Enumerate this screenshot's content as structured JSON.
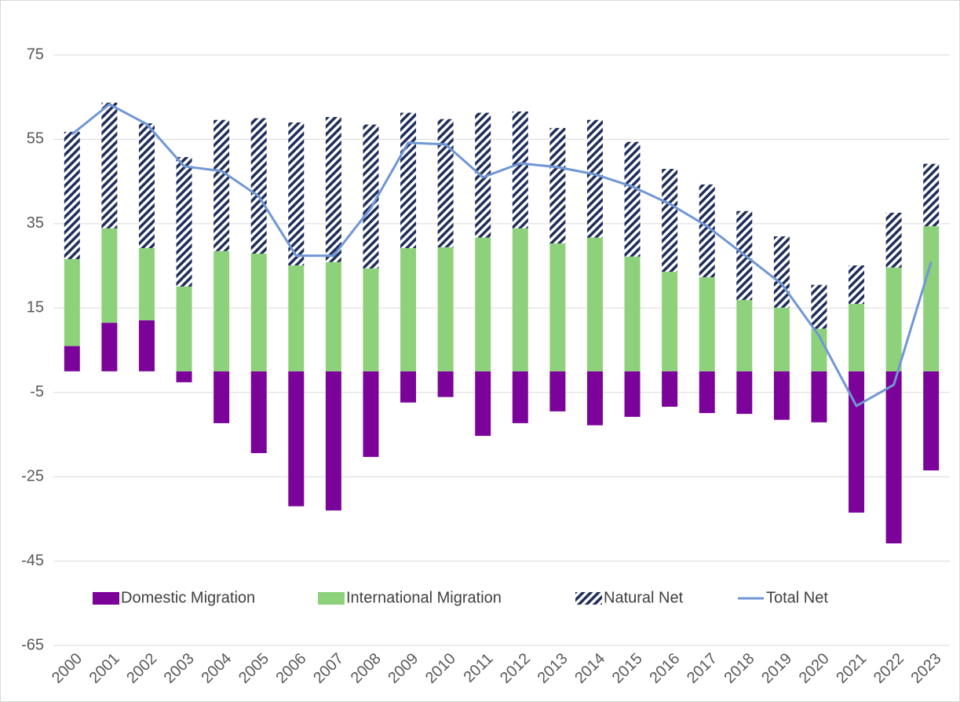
{
  "chart_data": {
    "type": "stacked-bar-line",
    "categories": [
      "2000",
      "2001",
      "2002",
      "2003",
      "2004",
      "2005",
      "2006",
      "2007",
      "2008",
      "2009",
      "2010",
      "2011",
      "2012",
      "2013",
      "2014",
      "2015",
      "2016",
      "2017",
      "2018",
      "2019",
      "2020",
      "2021",
      "2022",
      "2023"
    ],
    "series": [
      {
        "name": "Domestic Migration",
        "type": "bar",
        "color": "#7b0399",
        "values": [
          6.0,
          11.5,
          12.1,
          -2.6,
          -12.3,
          -19.4,
          -32.0,
          -33.0,
          -20.3,
          -7.4,
          -6.1,
          -15.3,
          -12.3,
          -9.5,
          -12.8,
          -10.8,
          -8.4,
          -9.9,
          -10.1,
          -11.5,
          -12.1,
          -33.5,
          -40.8,
          -23.5
        ]
      },
      {
        "name": "International Migration",
        "type": "bar",
        "color": "#8ed17b",
        "values": [
          20.6,
          22.4,
          17.1,
          20.1,
          28.5,
          27.9,
          25.1,
          25.9,
          24.4,
          29.2,
          29.4,
          31.7,
          33.9,
          30.3,
          31.7,
          27.2,
          23.6,
          22.3,
          16.9,
          15.1,
          10.1,
          16.0,
          24.6,
          34.4
        ]
      },
      {
        "name": "Natural Net",
        "type": "bar",
        "color": "#1f2d5a",
        "hatch": true,
        "values": [
          30.2,
          29.8,
          29.6,
          30.7,
          31.1,
          32.1,
          33.9,
          34.4,
          34.1,
          32.1,
          30.4,
          29.6,
          27.7,
          27.4,
          27.9,
          27.2,
          24.4,
          22.0,
          21.1,
          16.9,
          10.4,
          9.1,
          13.0,
          14.8
        ]
      },
      {
        "name": "Total Net",
        "type": "line",
        "color": "#7097d4",
        "values": [
          56.2,
          63.3,
          58.6,
          48.6,
          47.5,
          41.5,
          27.4,
          27.4,
          38.7,
          54.2,
          53.8,
          46.0,
          49.3,
          48.4,
          46.7,
          43.8,
          39.7,
          34.4,
          27.6,
          20.7,
          8.4,
          -8.2,
          -3.2,
          25.9
        ]
      }
    ],
    "ylim": [
      -65,
      75
    ],
    "yticks": [
      -65,
      -45,
      -25,
      -5,
      15,
      35,
      55,
      75
    ],
    "grid": true,
    "legend": "bottom"
  }
}
